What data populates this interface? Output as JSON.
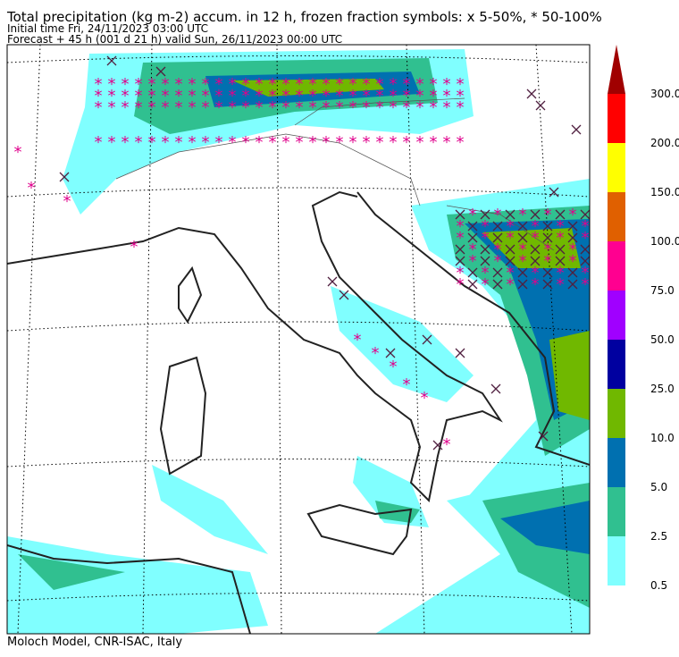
{
  "header": {
    "title": "Total precipitation (kg m-2) accum. in 12 h, frozen fraction symbols: x 5-50%, * 50-100%",
    "initial": "Initial time  Fri, 24/11/2023  03:00 UTC",
    "forecast": "Forecast  +  45 h  (001 d 21 h)  valid Sun, 26/11/2023 00:00 UTC"
  },
  "colorbar": {
    "labels": [
      "0.5",
      "2.5",
      "5.0",
      "10.0",
      "25.0",
      "50.0",
      "75.0",
      "100.0",
      "150.0",
      "200.0",
      "300.0"
    ],
    "colors": [
      "#80ffff",
      "#30c090",
      "#0070b0",
      "#70b800",
      "#0000a0",
      "#a000ff",
      "#ff0090",
      "#e06000",
      "#ffff00",
      "#ff0000"
    ],
    "over_color": "#a00000"
  },
  "footer": "Moloch Model, CNR-ISAC, Italy"
}
